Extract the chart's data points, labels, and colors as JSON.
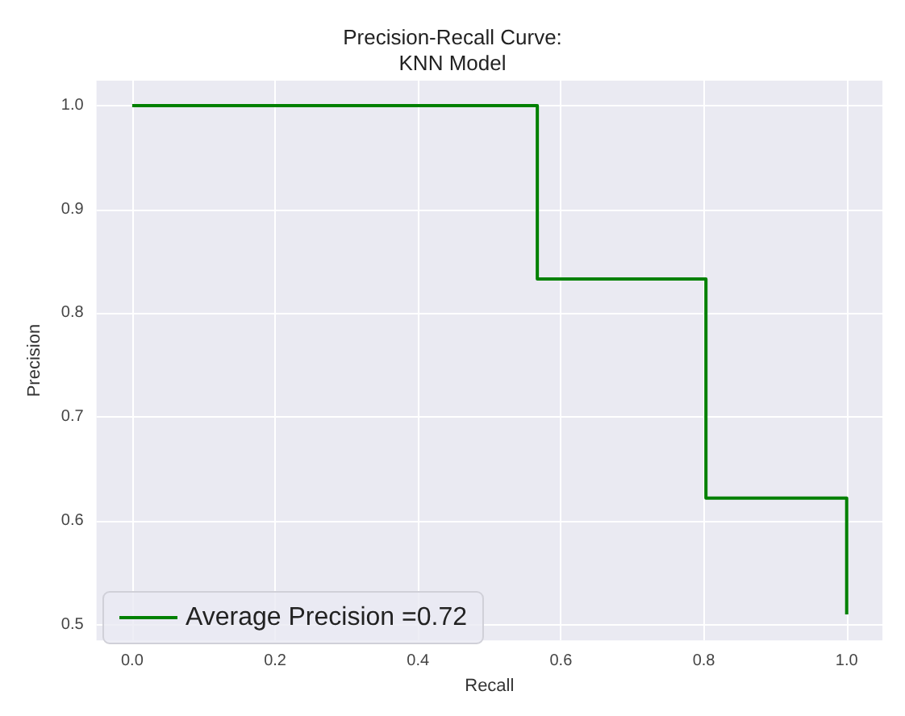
{
  "chart_data": {
    "type": "step",
    "title": "Precision-Recall Curve:\nKNN Model",
    "xlabel": "Recall",
    "ylabel": "Precision",
    "x": [
      0,
      0.567,
      0.803,
      1
    ],
    "series": [
      {
        "name": "Average Precision =0.72",
        "color": "#008000",
        "values": [
          1,
          0.833,
          0.622,
          0.51
        ]
      }
    ],
    "xlim": [
      -0.05,
      1.05
    ],
    "ylim": [
      0.485,
      1.024
    ],
    "xticks": [
      {
        "value": 0,
        "label": "0.0"
      },
      {
        "value": 0.2,
        "label": "0.2"
      },
      {
        "value": 0.4,
        "label": "0.4"
      },
      {
        "value": 0.6,
        "label": "0.6"
      },
      {
        "value": 0.8,
        "label": "0.8"
      },
      {
        "value": 1,
        "label": "1.0"
      }
    ],
    "yticks": [
      {
        "value": 0.5,
        "label": "0.5"
      },
      {
        "value": 0.6,
        "label": "0.6"
      },
      {
        "value": 0.7,
        "label": "0.7"
      },
      {
        "value": 0.8,
        "label": "0.8"
      },
      {
        "value": 0.9,
        "label": "0.9"
      },
      {
        "value": 1,
        "label": "1.0"
      }
    ],
    "grid": true,
    "legend": "bottom left",
    "marker": "none",
    "line_style": "solid"
  }
}
